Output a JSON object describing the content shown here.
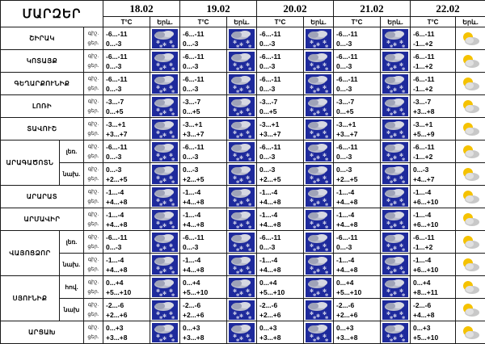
{
  "title": "ՄԱՐԶԵՐ",
  "col_temp": "T°C",
  "col_phen": "Երև.",
  "day_label": "ցեր.",
  "night_label": "գիշ.",
  "days": [
    "18.02",
    "19.02",
    "20.02",
    "21.02",
    "22.02"
  ],
  "colors": {
    "snow_bg": "#1e2a9c",
    "sun": "#f5c200",
    "cloud": "#c8c8c8"
  },
  "rows": [
    {
      "region": "ՇԻՐԱԿ",
      "sub": "",
      "t": [
        [
          "-6...-11",
          "0...-3"
        ],
        [
          "-6...-11",
          "0...-3"
        ],
        [
          "-6...-11",
          "0...-3"
        ],
        [
          "-6...-11",
          "0...-3"
        ],
        [
          "-6...-11",
          "-1...+2"
        ]
      ],
      "icons": [
        "snow",
        "snow",
        "snow",
        "snow",
        "sun"
      ]
    },
    {
      "region": "ԿՈՏԱՅՔ",
      "sub": "",
      "t": [
        [
          "-6...-11",
          "0...-3"
        ],
        [
          "-6...-11",
          "0...-3"
        ],
        [
          "-6...-11",
          "0...-3"
        ],
        [
          "-6...-11",
          "0...-3"
        ],
        [
          "-6...-11",
          "-1...+2"
        ]
      ],
      "icons": [
        "snow",
        "snow",
        "snow",
        "snow",
        "sun"
      ]
    },
    {
      "region": "ԳԵՂԱՐՔՈՒՆԻՔ",
      "sub": "",
      "t": [
        [
          "-6...-11",
          "0...-3"
        ],
        [
          "-6...-11",
          "0...-3"
        ],
        [
          "-6...-11",
          "0...-3"
        ],
        [
          "-6...-11",
          "0...-3"
        ],
        [
          "-6...-11",
          "-1...+2"
        ]
      ],
      "icons": [
        "snow",
        "snow",
        "snow",
        "snow",
        "sun"
      ]
    },
    {
      "region": "ԼՈՌԻ",
      "sub": "",
      "t": [
        [
          "-3...-7",
          "0...+5"
        ],
        [
          "-3...-7",
          "0...+5"
        ],
        [
          "-3...-7",
          "0...+5"
        ],
        [
          "-3...-7",
          "0...+5"
        ],
        [
          "-3...-7",
          "+3...+8"
        ]
      ],
      "icons": [
        "snow",
        "snow",
        "snow",
        "snow",
        "sun"
      ]
    },
    {
      "region": "ՏԱՎՈՒՇ",
      "sub": "",
      "t": [
        [
          "-3...+1",
          "+3...+7"
        ],
        [
          "-3...+1",
          "+3...+7"
        ],
        [
          "-3...+1",
          "+3...+7"
        ],
        [
          "-3...+1",
          "+3...+7"
        ],
        [
          "-3...+1",
          "+5...+9"
        ]
      ],
      "icons": [
        "snow",
        "snow",
        "snow",
        "snow",
        "sun"
      ]
    },
    {
      "region": "ԱՐԱԳԱԾՈՏՆ",
      "sub": "լեռ.",
      "t": [
        [
          "-6...-11",
          "0...-3"
        ],
        [
          "-6...-11",
          "0...-3"
        ],
        [
          "-6...-11",
          "0...-3"
        ],
        [
          "-6...-11",
          "0...-3"
        ],
        [
          "-6...-11",
          "-1...+2"
        ]
      ],
      "icons": [
        "snow",
        "snow",
        "snow",
        "snow",
        "sun"
      ]
    },
    {
      "region": "",
      "sub": "նախ.",
      "t": [
        [
          "0...-3",
          "+2...+5"
        ],
        [
          "0...-3",
          "+2...+5"
        ],
        [
          "0...-3",
          "+2...+5"
        ],
        [
          "0...-3",
          "+2...+5"
        ],
        [
          "0...-3",
          "+4...+7"
        ]
      ],
      "icons": [
        "snow",
        "snow",
        "snow",
        "snow",
        "sun"
      ]
    },
    {
      "region": "ԱՐԱՐԱՏ",
      "sub": "",
      "t": [
        [
          "-1...-4",
          "+4...+8"
        ],
        [
          "-1...-4",
          "+4...+8"
        ],
        [
          "-1...-4",
          "+4...+8"
        ],
        [
          "-1...-4",
          "+4...+8"
        ],
        [
          "-1...-4",
          "+6...+10"
        ]
      ],
      "icons": [
        "snow",
        "snow",
        "snow",
        "snow",
        "sun"
      ]
    },
    {
      "region": "ԱՐՄԱՎԻՐ",
      "sub": "",
      "t": [
        [
          "-1...-4",
          "+4...+8"
        ],
        [
          "-1...-4",
          "+4...+8"
        ],
        [
          "-1...-4",
          "+4...+8"
        ],
        [
          "-1...-4",
          "+4...+8"
        ],
        [
          "-1...-4",
          "+6...+10"
        ]
      ],
      "icons": [
        "snow",
        "snow",
        "snow",
        "snow",
        "sun"
      ]
    },
    {
      "region": "ՎԱՅՈՑՁՈՐ",
      "sub": "լեռ.",
      "t": [
        [
          "-6...-11",
          "0...-3"
        ],
        [
          "-6...-11",
          "0...-3"
        ],
        [
          "-6...-11",
          "0...-3"
        ],
        [
          "-6...-11",
          "0...-3"
        ],
        [
          "-6...-11",
          "-1...+2"
        ]
      ],
      "icons": [
        "snow",
        "snow",
        "snow",
        "snow",
        "sun"
      ]
    },
    {
      "region": "",
      "sub": "նախ.",
      "t": [
        [
          "-1...-4",
          "+4...+8"
        ],
        [
          "-1...-4",
          "+4...+8"
        ],
        [
          "-1...-4",
          "+4...+8"
        ],
        [
          "-1...-4",
          "+4...+8"
        ],
        [
          "-1...-4",
          "+6...+10"
        ]
      ],
      "icons": [
        "snow",
        "snow",
        "snow",
        "snow",
        "sun"
      ]
    },
    {
      "region": "ՍՅՈՒՆԻՔ",
      "sub": "հով.",
      "t": [
        [
          "0...+4",
          "+5...+10"
        ],
        [
          "0...+4",
          "+5...+10"
        ],
        [
          "0...+4",
          "+5...+10"
        ],
        [
          "0...+4",
          "+5...+10"
        ],
        [
          "0...+4",
          "+8...+11"
        ]
      ],
      "icons": [
        "snow",
        "snow",
        "snow",
        "snow",
        "sun"
      ]
    },
    {
      "region": "",
      "sub": "նախ",
      "t": [
        [
          "-2...-6",
          "+2...+6"
        ],
        [
          "-2...-6",
          "+2...+6"
        ],
        [
          "-2...-6",
          "+2...+6"
        ],
        [
          "-2...-6",
          "+2...+6"
        ],
        [
          "-2...-6",
          "+4...+8"
        ]
      ],
      "icons": [
        "snow",
        "snow",
        "snow",
        "snow",
        "sun"
      ]
    },
    {
      "region": "ԱՐՑԱԽ",
      "sub": "",
      "t": [
        [
          "0...+3",
          "+3...+8"
        ],
        [
          "0...+3",
          "+3...+8"
        ],
        [
          "0...+3",
          "+3...+8"
        ],
        [
          "0...+3",
          "+3...+8"
        ],
        [
          "0...+3",
          "+5...+10"
        ]
      ],
      "icons": [
        "snow",
        "snow",
        "snow",
        "snow",
        "sun"
      ]
    }
  ]
}
